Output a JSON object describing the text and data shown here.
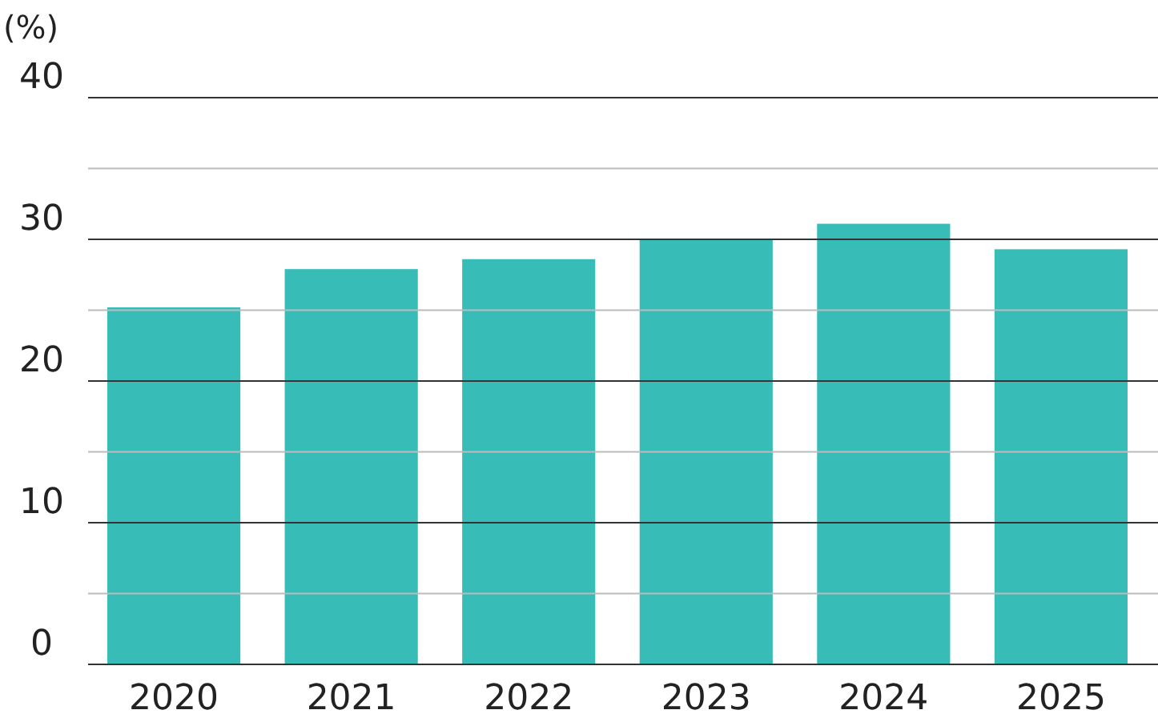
{
  "chart_data": {
    "type": "bar",
    "ylabel": "(%)",
    "categories": [
      "2020",
      "2021",
      "2022",
      "2023",
      "2024",
      "2025"
    ],
    "values": [
      25.2,
      27.9,
      28.6,
      30.0,
      31.1,
      29.3
    ],
    "color": "#38bcb8",
    "ylim": [
      0,
      40
    ],
    "yticks": [
      0,
      {
        "value": 5,
        "label": null
      },
      10,
      {
        "value": 15,
        "label": null
      },
      20,
      {
        "value": 25,
        "label": null
      },
      30,
      {
        "value": 35,
        "label": null
      },
      40
    ],
    "grid": true
  }
}
